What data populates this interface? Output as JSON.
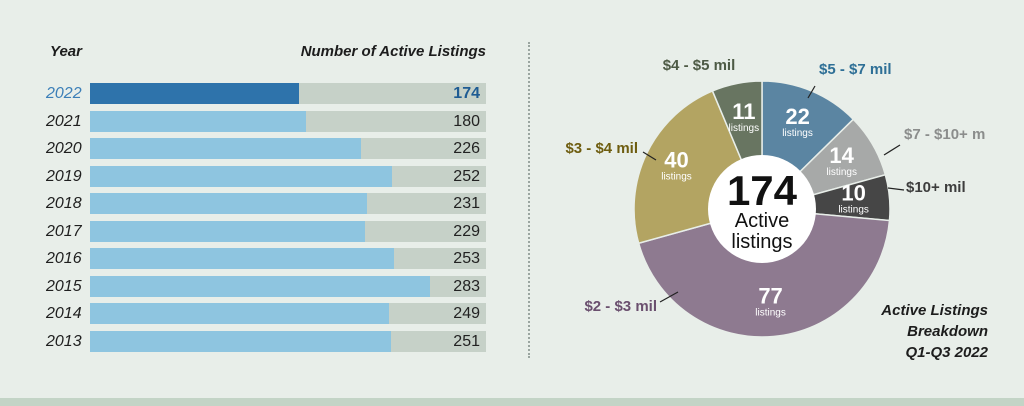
{
  "chart_data": [
    {
      "type": "bar",
      "xlabel": "Year",
      "ylabel": "Number of Active Listings",
      "categories": [
        "2022",
        "2021",
        "2020",
        "2019",
        "2018",
        "2017",
        "2016",
        "2015",
        "2014",
        "2013"
      ],
      "values": [
        174,
        180,
        226,
        252,
        231,
        229,
        253,
        283,
        249,
        251
      ],
      "highlight": "2022",
      "xlim": [
        0,
        330
      ],
      "colors": {
        "bar": "#8ec5e0",
        "highlight": "#2e73ab",
        "track": "#c6d1c8"
      }
    },
    {
      "type": "pie",
      "title": [
        "Active Listings",
        "Breakdown",
        "Q1-Q3 2022"
      ],
      "center": {
        "value": "174",
        "line1": "Active",
        "line2": "listings"
      },
      "unit": "listings",
      "slices": [
        {
          "name": "$5 - $7 mil",
          "value": 22,
          "color": "#5b85a2",
          "label_color": "#2e6f96"
        },
        {
          "name": "$7 - $10+ m",
          "value": 14,
          "color": "#a7a9a8",
          "label_color": "#8b8d8c"
        },
        {
          "name": "$10+ mil",
          "value": 10,
          "color": "#464646",
          "label_color": "#3d3d3d"
        },
        {
          "name": "$2 - $3 mil",
          "value": 77,
          "color": "#8e7a90",
          "label_color": "#6a4f6e"
        },
        {
          "name": "$3 - $4 mil",
          "value": 40,
          "color": "#b3a462",
          "label_color": "#6e5d10"
        },
        {
          "name": "$4 - $5 mil",
          "value": 11,
          "color": "#687561",
          "label_color": "#4d5a45"
        }
      ]
    }
  ]
}
